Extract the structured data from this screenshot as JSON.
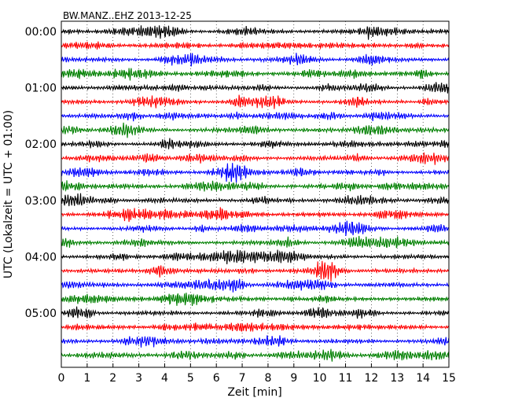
{
  "chart_data": {
    "type": "line",
    "title": "BW.MANZ..EHZ 2013-12-25",
    "xlabel": "Zeit  [min]",
    "ylabel": "UTC (Lokalzeit = UTC + 01:00)",
    "xlim": [
      0,
      15
    ],
    "x_ticks": [
      "0",
      "1",
      "2",
      "3",
      "4",
      "5",
      "6",
      "7",
      "8",
      "9",
      "10",
      "11",
      "12",
      "13",
      "14",
      "15"
    ],
    "y_tick_labels": [
      "00:00",
      "01:00",
      "02:00",
      "03:00",
      "04:00",
      "05:00"
    ],
    "traces_per_hour": 4,
    "trace_count": 24,
    "trace_colors": [
      "#000000",
      "#ff0000",
      "#0000ff",
      "#008000"
    ],
    "grid": "vertical dotted at each minute",
    "legend": "none"
  }
}
